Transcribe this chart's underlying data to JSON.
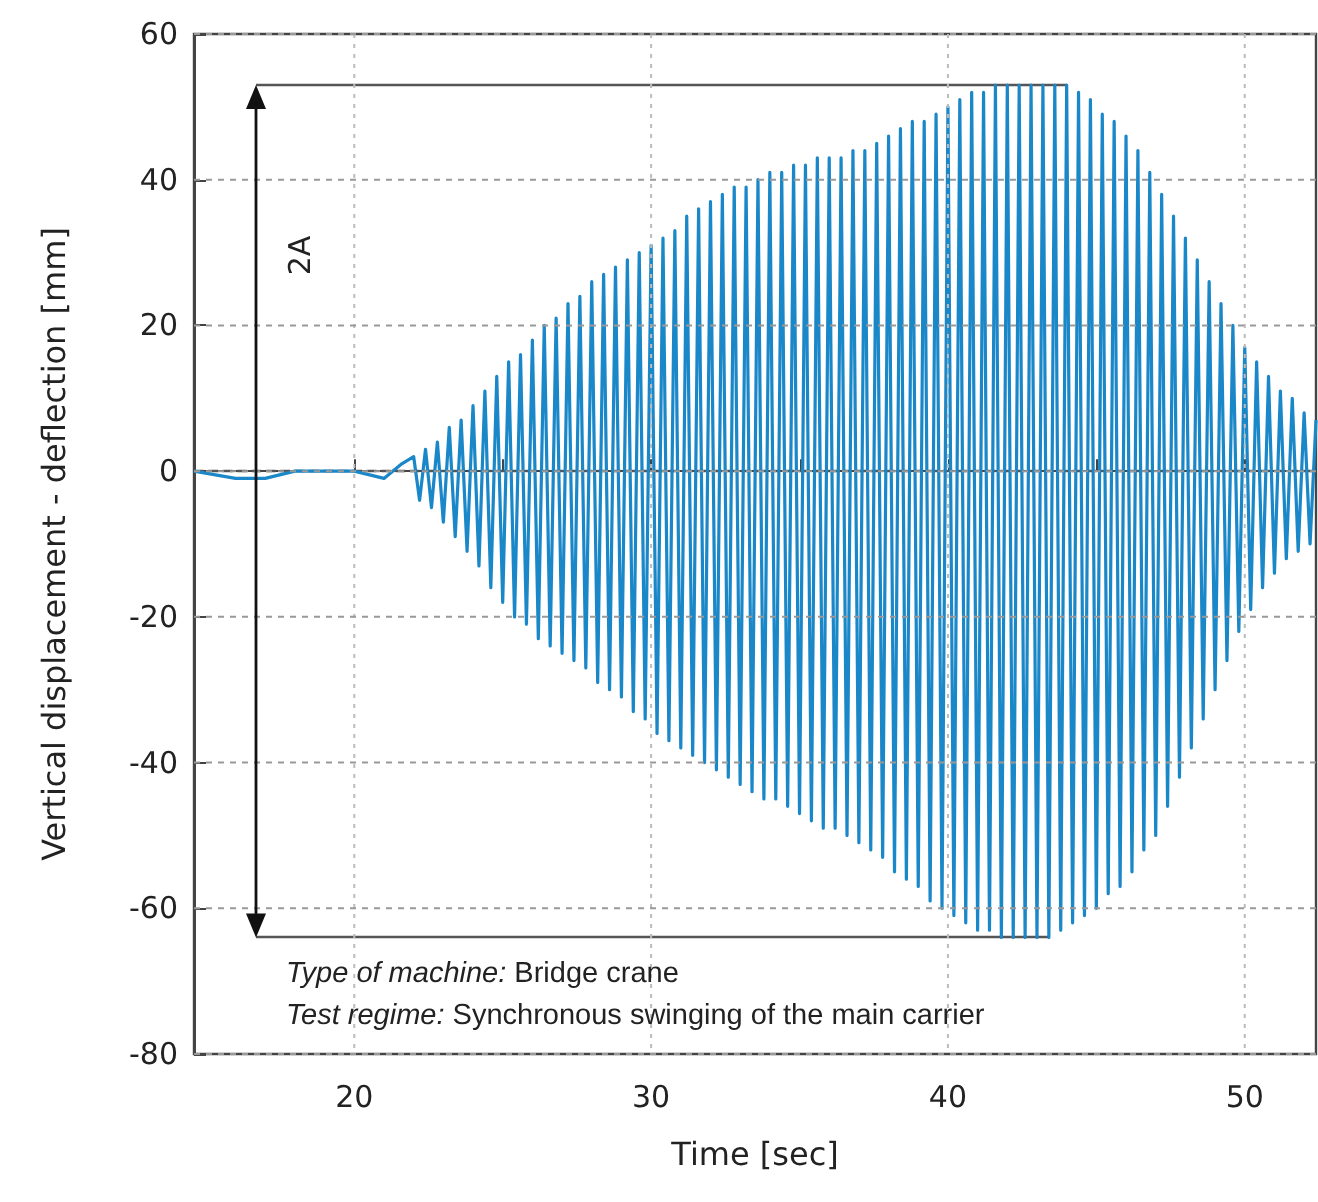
{
  "chart_data": {
    "type": "line",
    "xlabel": "Time [sec]",
    "ylabel": "Vertical displacement - deflection [mm]",
    "xlim": [
      14.6,
      52.4
    ],
    "ylim": [
      -80,
      60
    ],
    "xticks": [
      20,
      {
        "value": 25,
        "label": null
      },
      30,
      {
        "value": 35,
        "label": null
      },
      40,
      {
        "value": 45,
        "label": null
      },
      50
    ],
    "yticks": [
      -80,
      -60,
      -40,
      -20,
      0,
      20,
      40,
      60
    ],
    "grid": true,
    "marker": "none",
    "line_style": "solid",
    "ref_lines": [
      {
        "axis": "y",
        "value": 0,
        "color": "#555555",
        "line_style": "dashed"
      },
      {
        "axis": "y",
        "value": 53,
        "color": "#555555",
        "line_style": "solid"
      },
      {
        "axis": "y",
        "value": -64,
        "color": "#555555",
        "line_style": "solid"
      }
    ],
    "annotations": [
      "2A",
      "Type of machine: Bridge crane",
      "Test regime: Synchronous swinging of the main carrier"
    ],
    "series": [
      {
        "color": "#1a87c8",
        "x": [
          14.6,
          16,
          17,
          18,
          19,
          20,
          21,
          21.6,
          22.0,
          22.2,
          22.4,
          22.6,
          22.8,
          23.0,
          23.2,
          23.4,
          23.6,
          23.8,
          24.0,
          24.2,
          24.4,
          24.6,
          24.8,
          25.0,
          25.2,
          25.4,
          25.6,
          25.8,
          26.0,
          26.2,
          26.4,
          26.6,
          26.8,
          27.0,
          27.2,
          27.4,
          27.6,
          27.8,
          28.0,
          28.2,
          28.4,
          28.6,
          28.8,
          29.0,
          29.2,
          29.4,
          29.6,
          29.8,
          30.0,
          30.2,
          30.4,
          30.6,
          30.8,
          31.0,
          31.2,
          31.4,
          31.6,
          31.8,
          32.0,
          32.2,
          32.4,
          32.6,
          32.8,
          33.0,
          33.2,
          33.4,
          33.6,
          33.8,
          34.0,
          34.2,
          34.4,
          34.6,
          34.8,
          35.0,
          35.2,
          35.4,
          35.6,
          35.8,
          36.0,
          36.2,
          36.4,
          36.6,
          36.8,
          37.0,
          37.2,
          37.4,
          37.6,
          37.8,
          38.0,
          38.2,
          38.4,
          38.6,
          38.8,
          39.0,
          39.2,
          39.4,
          39.6,
          39.8,
          40.0,
          40.2,
          40.4,
          40.6,
          40.8,
          41.0,
          41.2,
          41.4,
          41.6,
          41.8,
          42.0,
          42.2,
          42.4,
          42.6,
          42.8,
          43.0,
          43.2,
          43.4,
          43.6,
          43.8,
          44.0,
          44.2,
          44.4,
          44.6,
          44.8,
          45.0,
          45.2,
          45.4,
          45.6,
          45.8,
          46.0,
          46.2,
          46.4,
          46.6,
          46.8,
          47.0,
          47.2,
          47.4,
          47.6,
          47.8,
          48.0,
          48.2,
          48.4,
          48.6,
          48.8,
          49.0,
          49.2,
          49.4,
          49.6,
          49.8,
          50.0,
          50.2,
          50.4,
          50.6,
          50.8,
          51.0,
          51.2,
          51.4,
          51.6,
          51.8,
          52.0,
          52.2,
          52.4
        ],
        "values": [
          0,
          -1,
          -1,
          0,
          0,
          0,
          -1,
          1,
          2,
          -4,
          3,
          -5,
          4,
          -7,
          6,
          -9,
          7,
          -11,
          9,
          -13,
          11,
          -16,
          13,
          -18,
          15,
          -20,
          16,
          -21,
          18,
          -23,
          20,
          -24,
          21,
          -25,
          23,
          -26,
          24,
          -27,
          26,
          -29,
          27,
          -30,
          28,
          -31,
          29,
          -33,
          30,
          -34,
          31,
          -36,
          32,
          -37,
          33,
          -38,
          35,
          -39,
          36,
          -40,
          37,
          -41,
          38,
          -42,
          39,
          -43,
          39,
          -44,
          40,
          -45,
          41,
          -45,
          41,
          -46,
          42,
          -47,
          42,
          -48,
          43,
          -49,
          43,
          -49,
          43,
          -50,
          44,
          -51,
          44,
          -52,
          45,
          -53,
          46,
          -55,
          47,
          -56,
          48,
          -57,
          48,
          -59,
          49,
          -60,
          50,
          -61,
          51,
          -62,
          52,
          -63,
          52,
          -63,
          53,
          -64,
          53,
          -64,
          53,
          -64,
          53,
          -64,
          53,
          -64,
          53,
          -63,
          53,
          -62,
          52,
          -61,
          51,
          -60,
          49,
          -58,
          48,
          -57,
          46,
          -55,
          44,
          -52,
          41,
          -50,
          38,
          -46,
          35,
          -42,
          32,
          -38,
          29,
          -34,
          26,
          -30,
          23,
          -26,
          20,
          -22,
          17,
          -19,
          15,
          -16,
          13,
          -14,
          11,
          -12,
          10,
          -11,
          8,
          -10,
          7
        ]
      }
    ]
  }
}
